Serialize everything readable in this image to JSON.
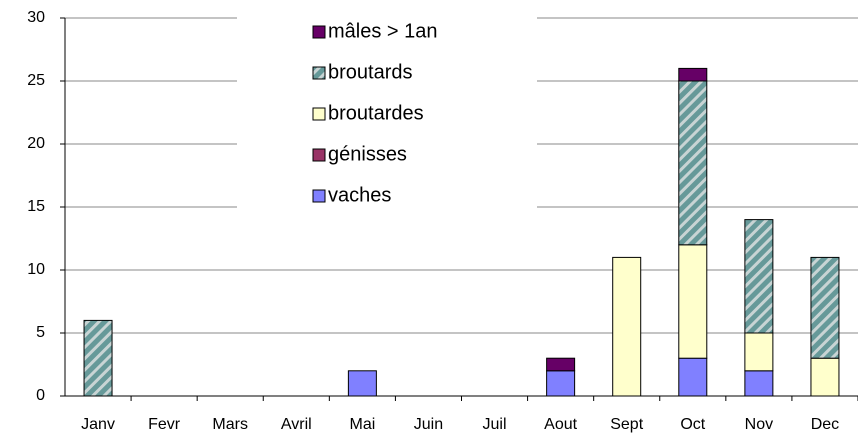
{
  "chart_data": {
    "type": "stacked_bar",
    "categories": [
      "Janv",
      "Fevr",
      "Mars",
      "Avril",
      "Mai",
      "Juin",
      "Juil",
      "Aout",
      "Sept",
      "Oct",
      "Nov",
      "Dec"
    ],
    "series": [
      {
        "name": "vaches",
        "color": "#8080ff",
        "values": [
          0,
          0,
          0,
          0,
          2,
          0,
          0,
          2,
          0,
          3,
          2,
          0
        ]
      },
      {
        "name": "génisses",
        "color": "#993366",
        "values": [
          0,
          0,
          0,
          0,
          0,
          0,
          0,
          0,
          0,
          0,
          0,
          0
        ]
      },
      {
        "name": "broutardes",
        "color": "#ffffcc",
        "values": [
          0,
          0,
          0,
          0,
          0,
          0,
          0,
          0,
          11,
          9,
          3,
          3
        ]
      },
      {
        "name": "broutards",
        "color": "#669999",
        "hatched": true,
        "values": [
          6,
          0,
          0,
          0,
          0,
          0,
          0,
          0,
          0,
          13,
          9,
          8
        ]
      },
      {
        "name": "mâles > 1an",
        "color": "#660066",
        "values": [
          0,
          0,
          0,
          0,
          0,
          0,
          0,
          1,
          0,
          1,
          0,
          0
        ]
      }
    ],
    "ylim": [
      0,
      30
    ],
    "yticks": [
      0,
      5,
      10,
      15,
      20,
      25,
      30
    ],
    "grid": true
  }
}
